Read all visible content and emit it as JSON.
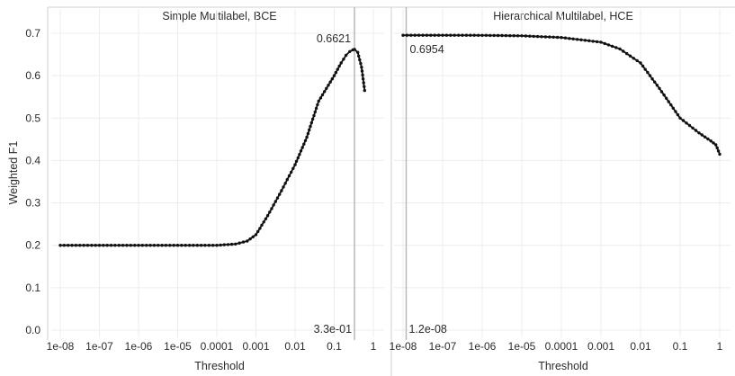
{
  "chart_data": [
    {
      "type": "line",
      "title": "Simple Multilabel, BCE",
      "xlabel": "Threshold",
      "ylabel": "Weighted F1",
      "x_scale": "log",
      "x_ticks": [
        "1e-08",
        "1e-07",
        "1e-06",
        "1e-05",
        "0.0001",
        "0.001",
        "0.01",
        "0.1",
        "1"
      ],
      "y_ticks": [
        "0.0",
        "0.1",
        "0.2",
        "0.3",
        "0.4",
        "0.5",
        "0.6",
        "0.7"
      ],
      "ylim": [
        0,
        0.7
      ],
      "grid": true,
      "best_threshold_label": "3.3e-01",
      "best_threshold": 0.33,
      "best_value_label": "0.6621",
      "series": [
        {
          "x": [
            1e-08,
            1e-07,
            1e-06,
            1e-05,
            0.0001,
            0.0003,
            0.0006,
            0.001,
            0.002,
            0.004,
            0.01,
            0.02,
            0.04,
            0.1,
            0.15,
            0.2,
            0.25,
            0.3,
            0.33,
            0.4,
            0.5,
            0.6
          ],
          "values": [
            0.2,
            0.2,
            0.2,
            0.2,
            0.2,
            0.203,
            0.21,
            0.225,
            0.27,
            0.32,
            0.39,
            0.455,
            0.54,
            0.6,
            0.63,
            0.648,
            0.657,
            0.661,
            0.6621,
            0.655,
            0.62,
            0.565
          ]
        }
      ]
    },
    {
      "type": "line",
      "title": "Hierarchical Multilabel, HCE",
      "xlabel": "Threshold",
      "x_scale": "log",
      "x_ticks": [
        "1e-08",
        "1e-07",
        "1e-06",
        "1e-05",
        "0.0001",
        "0.001",
        "0.01",
        "0.1",
        "1"
      ],
      "ylim": [
        0,
        0.7
      ],
      "grid": true,
      "best_threshold_label": "1.2e-08",
      "best_threshold": 1.2e-08,
      "best_value_label": "0.6954",
      "series": [
        {
          "x": [
            1e-08,
            1e-07,
            1e-06,
            1e-05,
            0.0001,
            0.001,
            0.003,
            0.01,
            0.03,
            0.1,
            0.3,
            0.6,
            0.8,
            1
          ],
          "values": [
            0.6954,
            0.6954,
            0.6952,
            0.694,
            0.69,
            0.679,
            0.663,
            0.63,
            0.57,
            0.5,
            0.465,
            0.446,
            0.437,
            0.415
          ]
        }
      ]
    }
  ]
}
